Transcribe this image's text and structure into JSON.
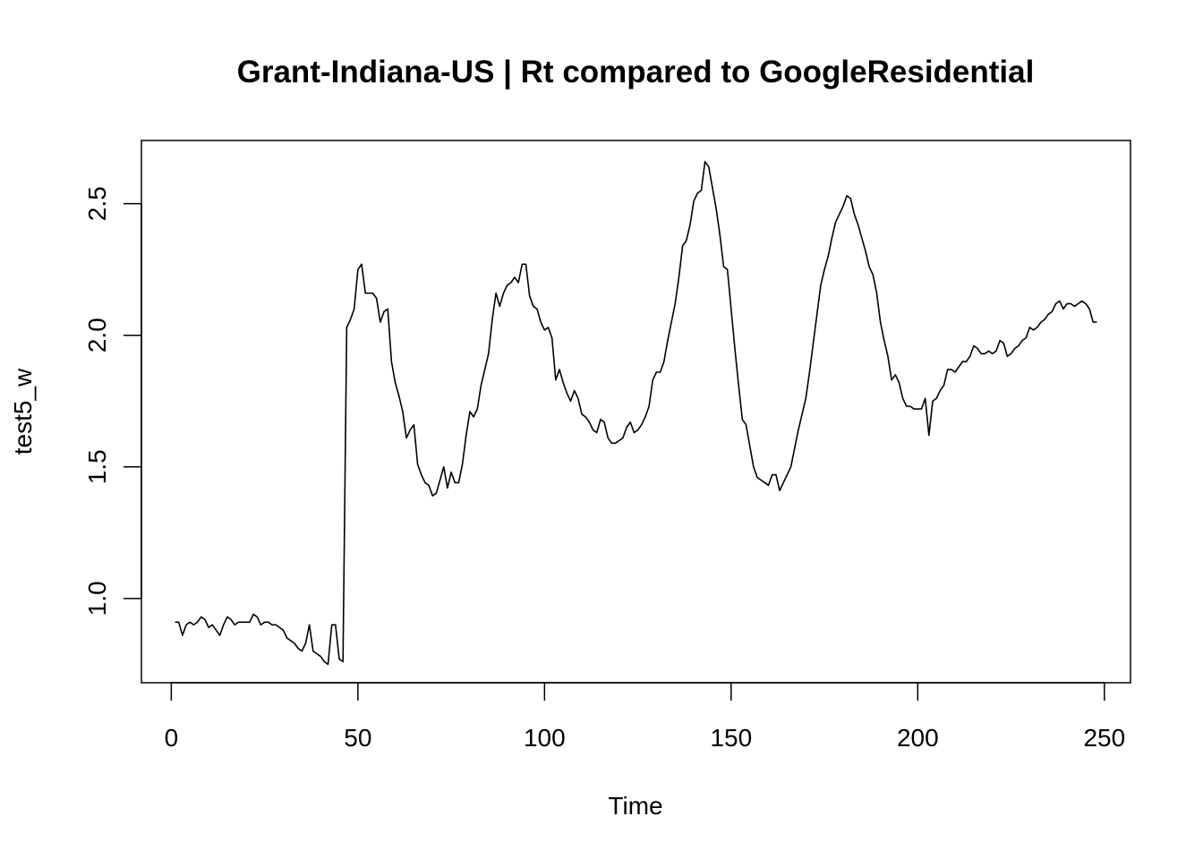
{
  "chart_data": {
    "type": "line",
    "title": "Grant-Indiana-US | Rt compared to GoogleResidential",
    "xlabel": "Time",
    "ylabel": "test5_w",
    "xlim": [
      -8,
      257
    ],
    "ylim": [
      0.68,
      2.74
    ],
    "x_ticks": [
      0,
      50,
      100,
      150,
      200,
      250
    ],
    "x_tick_labels": [
      "0",
      "50",
      "100",
      "150",
      "200",
      "250"
    ],
    "y_ticks": [
      1.0,
      1.5,
      2.0,
      2.5
    ],
    "y_tick_labels": [
      "1.0",
      "1.5",
      "2.0",
      "2.5"
    ],
    "grid": false,
    "line_color": "#000000",
    "series": [
      {
        "points": [
          [
            1,
            0.91
          ],
          [
            2,
            0.91
          ],
          [
            3,
            0.86
          ],
          [
            4,
            0.9
          ],
          [
            5,
            0.91
          ],
          [
            6,
            0.9
          ],
          [
            7,
            0.91
          ],
          [
            8,
            0.93
          ],
          [
            9,
            0.92
          ],
          [
            10,
            0.89
          ],
          [
            11,
            0.9
          ],
          [
            12,
            0.88
          ],
          [
            13,
            0.86
          ],
          [
            14,
            0.9
          ],
          [
            15,
            0.93
          ],
          [
            16,
            0.92
          ],
          [
            17,
            0.9
          ],
          [
            18,
            0.91
          ],
          [
            19,
            0.91
          ],
          [
            20,
            0.91
          ],
          [
            21,
            0.91
          ],
          [
            22,
            0.94
          ],
          [
            23,
            0.93
          ],
          [
            24,
            0.9
          ],
          [
            25,
            0.91
          ],
          [
            26,
            0.91
          ],
          [
            27,
            0.9
          ],
          [
            28,
            0.9
          ],
          [
            29,
            0.89
          ],
          [
            30,
            0.88
          ],
          [
            31,
            0.85
          ],
          [
            32,
            0.84
          ],
          [
            33,
            0.83
          ],
          [
            34,
            0.81
          ],
          [
            35,
            0.8
          ],
          [
            36,
            0.83
          ],
          [
            37,
            0.9
          ],
          [
            38,
            0.8
          ],
          [
            39,
            0.79
          ],
          [
            40,
            0.78
          ],
          [
            41,
            0.76
          ],
          [
            42,
            0.75
          ],
          [
            43,
            0.9
          ],
          [
            44,
            0.9
          ],
          [
            45,
            0.77
          ],
          [
            46,
            0.76
          ],
          [
            47,
            2.03
          ],
          [
            48,
            2.06
          ],
          [
            49,
            2.1
          ],
          [
            50,
            2.25
          ],
          [
            51,
            2.27
          ],
          [
            52,
            2.16
          ],
          [
            53,
            2.16
          ],
          [
            54,
            2.16
          ],
          [
            55,
            2.14
          ],
          [
            56,
            2.05
          ],
          [
            57,
            2.09
          ],
          [
            58,
            2.1
          ],
          [
            59,
            1.9
          ],
          [
            60,
            1.82
          ],
          [
            61,
            1.77
          ],
          [
            62,
            1.71
          ],
          [
            63,
            1.61
          ],
          [
            64,
            1.64
          ],
          [
            65,
            1.66
          ],
          [
            66,
            1.51
          ],
          [
            67,
            1.47
          ],
          [
            68,
            1.44
          ],
          [
            69,
            1.43
          ],
          [
            70,
            1.39
          ],
          [
            71,
            1.4
          ],
          [
            72,
            1.45
          ],
          [
            73,
            1.5
          ],
          [
            74,
            1.42
          ],
          [
            75,
            1.48
          ],
          [
            76,
            1.44
          ],
          [
            77,
            1.44
          ],
          [
            78,
            1.51
          ],
          [
            79,
            1.62
          ],
          [
            80,
            1.71
          ],
          [
            81,
            1.69
          ],
          [
            82,
            1.72
          ],
          [
            83,
            1.81
          ],
          [
            84,
            1.87
          ],
          [
            85,
            1.93
          ],
          [
            86,
            2.06
          ],
          [
            87,
            2.16
          ],
          [
            88,
            2.11
          ],
          [
            89,
            2.16
          ],
          [
            90,
            2.19
          ],
          [
            91,
            2.2
          ],
          [
            92,
            2.22
          ],
          [
            93,
            2.2
          ],
          [
            94,
            2.27
          ],
          [
            95,
            2.27
          ],
          [
            96,
            2.15
          ],
          [
            97,
            2.11
          ],
          [
            98,
            2.1
          ],
          [
            99,
            2.05
          ],
          [
            100,
            2.02
          ],
          [
            101,
            2.03
          ],
          [
            102,
            1.99
          ],
          [
            103,
            1.83
          ],
          [
            104,
            1.87
          ],
          [
            105,
            1.82
          ],
          [
            106,
            1.78
          ],
          [
            107,
            1.75
          ],
          [
            108,
            1.79
          ],
          [
            109,
            1.76
          ],
          [
            110,
            1.7
          ],
          [
            111,
            1.69
          ],
          [
            112,
            1.67
          ],
          [
            113,
            1.64
          ],
          [
            114,
            1.63
          ],
          [
            115,
            1.68
          ],
          [
            116,
            1.67
          ],
          [
            117,
            1.61
          ],
          [
            118,
            1.59
          ],
          [
            119,
            1.59
          ],
          [
            120,
            1.6
          ],
          [
            121,
            1.61
          ],
          [
            122,
            1.65
          ],
          [
            123,
            1.67
          ],
          [
            124,
            1.63
          ],
          [
            125,
            1.64
          ],
          [
            126,
            1.66
          ],
          [
            127,
            1.69
          ],
          [
            128,
            1.73
          ],
          [
            129,
            1.83
          ],
          [
            130,
            1.86
          ],
          [
            131,
            1.86
          ],
          [
            132,
            1.9
          ],
          [
            133,
            1.98
          ],
          [
            134,
            2.05
          ],
          [
            135,
            2.12
          ],
          [
            136,
            2.22
          ],
          [
            137,
            2.34
          ],
          [
            138,
            2.36
          ],
          [
            139,
            2.42
          ],
          [
            140,
            2.51
          ],
          [
            141,
            2.54
          ],
          [
            142,
            2.55
          ],
          [
            143,
            2.66
          ],
          [
            144,
            2.64
          ],
          [
            145,
            2.56
          ],
          [
            146,
            2.48
          ],
          [
            147,
            2.38
          ],
          [
            148,
            2.26
          ],
          [
            149,
            2.25
          ],
          [
            150,
            2.1
          ],
          [
            151,
            1.95
          ],
          [
            152,
            1.81
          ],
          [
            153,
            1.68
          ],
          [
            154,
            1.66
          ],
          [
            155,
            1.58
          ],
          [
            156,
            1.5
          ],
          [
            157,
            1.46
          ],
          [
            158,
            1.45
          ],
          [
            159,
            1.44
          ],
          [
            160,
            1.43
          ],
          [
            161,
            1.47
          ],
          [
            162,
            1.47
          ],
          [
            163,
            1.41
          ],
          [
            164,
            1.44
          ],
          [
            165,
            1.47
          ],
          [
            166,
            1.5
          ],
          [
            167,
            1.57
          ],
          [
            168,
            1.64
          ],
          [
            169,
            1.7
          ],
          [
            170,
            1.76
          ],
          [
            171,
            1.86
          ],
          [
            172,
            1.97
          ],
          [
            173,
            2.08
          ],
          [
            174,
            2.19
          ],
          [
            175,
            2.25
          ],
          [
            176,
            2.3
          ],
          [
            177,
            2.37
          ],
          [
            178,
            2.43
          ],
          [
            179,
            2.46
          ],
          [
            180,
            2.49
          ],
          [
            181,
            2.53
          ],
          [
            182,
            2.52
          ],
          [
            183,
            2.46
          ],
          [
            184,
            2.42
          ],
          [
            185,
            2.37
          ],
          [
            186,
            2.32
          ],
          [
            187,
            2.26
          ],
          [
            188,
            2.23
          ],
          [
            189,
            2.16
          ],
          [
            190,
            2.05
          ],
          [
            191,
            1.98
          ],
          [
            192,
            1.92
          ],
          [
            193,
            1.83
          ],
          [
            194,
            1.85
          ],
          [
            195,
            1.82
          ],
          [
            196,
            1.76
          ],
          [
            197,
            1.73
          ],
          [
            198,
            1.73
          ],
          [
            199,
            1.72
          ],
          [
            200,
            1.72
          ],
          [
            201,
            1.72
          ],
          [
            202,
            1.76
          ],
          [
            203,
            1.62
          ],
          [
            204,
            1.75
          ],
          [
            205,
            1.76
          ],
          [
            206,
            1.79
          ],
          [
            207,
            1.81
          ],
          [
            208,
            1.87
          ],
          [
            209,
            1.87
          ],
          [
            210,
            1.86
          ],
          [
            211,
            1.88
          ],
          [
            212,
            1.9
          ],
          [
            213,
            1.9
          ],
          [
            214,
            1.92
          ],
          [
            215,
            1.96
          ],
          [
            216,
            1.95
          ],
          [
            217,
            1.93
          ],
          [
            218,
            1.93
          ],
          [
            219,
            1.94
          ],
          [
            220,
            1.93
          ],
          [
            221,
            1.94
          ],
          [
            222,
            1.98
          ],
          [
            223,
            1.97
          ],
          [
            224,
            1.92
          ],
          [
            225,
            1.93
          ],
          [
            226,
            1.95
          ],
          [
            227,
            1.96
          ],
          [
            228,
            1.98
          ],
          [
            229,
            1.99
          ],
          [
            230,
            2.03
          ],
          [
            231,
            2.02
          ],
          [
            232,
            2.03
          ],
          [
            233,
            2.05
          ],
          [
            234,
            2.06
          ],
          [
            235,
            2.08
          ],
          [
            236,
            2.09
          ],
          [
            237,
            2.12
          ],
          [
            238,
            2.13
          ],
          [
            239,
            2.1
          ],
          [
            240,
            2.12
          ],
          [
            241,
            2.12
          ],
          [
            242,
            2.11
          ],
          [
            243,
            2.12
          ],
          [
            244,
            2.13
          ],
          [
            245,
            2.12
          ],
          [
            246,
            2.1
          ],
          [
            247,
            2.05
          ],
          [
            248,
            2.05
          ]
        ]
      }
    ]
  }
}
